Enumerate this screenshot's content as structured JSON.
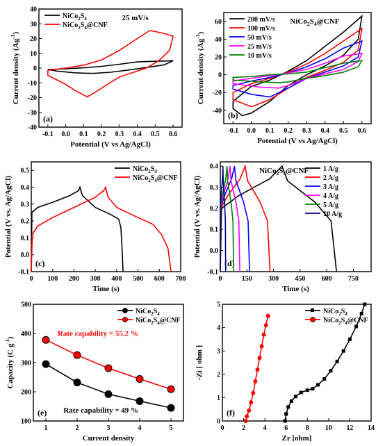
{
  "chart_data": [
    {
      "id": "a",
      "type": "line",
      "panel_label": "(a)",
      "annotation": "25 mV/s",
      "xlabel": "Potential (V vs Ag/AgCl)",
      "ylabel": "Current density (Ag⁻¹)",
      "xlim": [
        -0.15,
        0.65
      ],
      "ylim": [
        -40,
        40
      ],
      "xticks": [
        "-0.1",
        "0.0",
        "0.1",
        "0.2",
        "0.3",
        "0.4",
        "0.5",
        "0.6"
      ],
      "yticks": [
        "-40",
        "-30",
        "-20",
        "-10",
        "0",
        "10",
        "20",
        "30",
        "40"
      ],
      "legend_position": "top-left",
      "series": [
        {
          "name": "NiCo₂S₄",
          "color": "#000000",
          "closed": true,
          "points": [
            [
              -0.1,
              -1
            ],
            [
              0.0,
              -0.5
            ],
            [
              0.1,
              0.2
            ],
            [
              0.2,
              1.2
            ],
            [
              0.3,
              2.6
            ],
            [
              0.4,
              4.2
            ],
            [
              0.5,
              4.6
            ],
            [
              0.6,
              5
            ],
            [
              0.55,
              2.2
            ],
            [
              0.45,
              0.4
            ],
            [
              0.35,
              -1.3
            ],
            [
              0.25,
              -2.8
            ],
            [
              0.15,
              -3.6
            ],
            [
              0.05,
              -3.2
            ],
            [
              -0.05,
              -2
            ],
            [
              -0.1,
              -1
            ]
          ]
        },
        {
          "name": "NiCo₂S₄@CNF",
          "color": "#ff0000",
          "closed": true,
          "points": [
            [
              -0.1,
              -1.5
            ],
            [
              0.0,
              0
            ],
            [
              0.1,
              2
            ],
            [
              0.2,
              5.5
            ],
            [
              0.3,
              12
            ],
            [
              0.4,
              20
            ],
            [
              0.47,
              25.5
            ],
            [
              0.55,
              23.5
            ],
            [
              0.6,
              21.5
            ],
            [
              0.58,
              12
            ],
            [
              0.52,
              5
            ],
            [
              0.45,
              0
            ],
            [
              0.4,
              -2
            ],
            [
              0.3,
              -6
            ],
            [
              0.22,
              -12
            ],
            [
              0.17,
              -16
            ],
            [
              0.12,
              -19.5
            ],
            [
              0.05,
              -15
            ],
            [
              0.0,
              -11
            ],
            [
              -0.05,
              -8
            ],
            [
              -0.1,
              -5
            ],
            [
              -0.1,
              -1.5
            ]
          ]
        }
      ]
    },
    {
      "id": "b",
      "type": "line",
      "panel_label": "(b)",
      "annotation": "NiCo₂S₄@CNF",
      "xlabel": "Potential (V vs Ag/AgCl)",
      "ylabel": "Current density (Ag⁻¹)",
      "xlim": [
        -0.15,
        0.65
      ],
      "ylim": [
        -55,
        70
      ],
      "xticks": [
        "-0.1",
        "0.0",
        "0.1",
        "0.2",
        "0.3",
        "0.4",
        "0.5",
        "0.6"
      ],
      "yticks": [
        "-40",
        "-20",
        "0",
        "20",
        "40",
        "60"
      ],
      "legend_position": "top-left",
      "series": [
        {
          "name": "200 mV/s",
          "color": "#000000",
          "closed": true,
          "points": [
            [
              -0.1,
              -30
            ],
            [
              0.0,
              -13
            ],
            [
              0.1,
              -6
            ],
            [
              0.2,
              4
            ],
            [
              0.3,
              16
            ],
            [
              0.4,
              32
            ],
            [
              0.5,
              48
            ],
            [
              0.6,
              66
            ],
            [
              0.58,
              40
            ],
            [
              0.5,
              22
            ],
            [
              0.4,
              10
            ],
            [
              0.3,
              0
            ],
            [
              0.2,
              -12
            ],
            [
              0.1,
              -30
            ],
            [
              0.0,
              -43
            ],
            [
              -0.05,
              -46
            ],
            [
              -0.1,
              -38
            ],
            [
              -0.1,
              -30
            ]
          ]
        },
        {
          "name": "100 mV/s",
          "color": "#ff0000",
          "closed": true,
          "points": [
            [
              -0.1,
              -20
            ],
            [
              0.0,
              -10
            ],
            [
              0.1,
              -4
            ],
            [
              0.2,
              3
            ],
            [
              0.3,
              12
            ],
            [
              0.4,
              24
            ],
            [
              0.5,
              38
            ],
            [
              0.6,
              52
            ],
            [
              0.58,
              28
            ],
            [
              0.5,
              14
            ],
            [
              0.4,
              5
            ],
            [
              0.3,
              -3
            ],
            [
              0.2,
              -15
            ],
            [
              0.1,
              -28
            ],
            [
              0.0,
              -36
            ],
            [
              -0.1,
              -28
            ],
            [
              -0.1,
              -20
            ]
          ]
        },
        {
          "name": "50 mV/s",
          "color": "#0000ff",
          "closed": true,
          "points": [
            [
              -0.1,
              -12
            ],
            [
              0.0,
              -7
            ],
            [
              0.1,
              -3
            ],
            [
              0.2,
              2
            ],
            [
              0.3,
              9
            ],
            [
              0.4,
              18
            ],
            [
              0.5,
              30
            ],
            [
              0.6,
              38
            ],
            [
              0.58,
              20
            ],
            [
              0.5,
              10
            ],
            [
              0.4,
              3
            ],
            [
              0.3,
              -4
            ],
            [
              0.2,
              -15
            ],
            [
              0.1,
              -25
            ],
            [
              0.0,
              -22
            ],
            [
              -0.1,
              -16
            ],
            [
              -0.1,
              -12
            ]
          ]
        },
        {
          "name": "25 mV/s",
          "color": "#ff00ff",
          "closed": true,
          "points": [
            [
              -0.1,
              -7
            ],
            [
              0.0,
              -4
            ],
            [
              0.1,
              -1
            ],
            [
              0.2,
              2
            ],
            [
              0.3,
              6
            ],
            [
              0.4,
              13
            ],
            [
              0.5,
              21
            ],
            [
              0.6,
              24
            ],
            [
              0.58,
              15
            ],
            [
              0.5,
              6
            ],
            [
              0.4,
              1
            ],
            [
              0.3,
              -4
            ],
            [
              0.2,
              -12
            ],
            [
              0.15,
              -15
            ],
            [
              0.05,
              -14
            ],
            [
              -0.1,
              -10
            ],
            [
              -0.1,
              -7
            ]
          ]
        },
        {
          "name": "10 mV/s",
          "color": "#008000",
          "closed": true,
          "points": [
            [
              -0.1,
              -3
            ],
            [
              0.0,
              -2
            ],
            [
              0.1,
              0
            ],
            [
              0.2,
              1
            ],
            [
              0.3,
              3
            ],
            [
              0.4,
              8
            ],
            [
              0.5,
              13
            ],
            [
              0.6,
              16
            ],
            [
              0.58,
              9
            ],
            [
              0.5,
              3
            ],
            [
              0.4,
              -1
            ],
            [
              0.3,
              -4
            ],
            [
              0.2,
              -8
            ],
            [
              0.15,
              -9
            ],
            [
              0.05,
              -8
            ],
            [
              -0.1,
              -6
            ],
            [
              -0.1,
              -3
            ]
          ]
        }
      ]
    },
    {
      "id": "c",
      "type": "line",
      "panel_label": "(c)",
      "xlabel": "Time (s)",
      "ylabel": "Potential (V vs. Ag/AgCl)",
      "xlim": [
        0,
        700
      ],
      "ylim": [
        -0.1,
        0.55
      ],
      "xticks": [
        "0",
        "100",
        "200",
        "300",
        "400",
        "500",
        "600",
        "700"
      ],
      "yticks": [
        "-0.1",
        "0.0",
        "0.1",
        "0.2",
        "0.3",
        "0.4",
        "0.5"
      ],
      "legend_position": "top-right",
      "series": [
        {
          "name": "NiCo₂S₄",
          "color": "#000000",
          "points": [
            [
              0,
              -0.1
            ],
            [
              3,
              0.25
            ],
            [
              30,
              0.28
            ],
            [
              100,
              0.31
            ],
            [
              180,
              0.35
            ],
            [
              222,
              0.38
            ],
            [
              228,
              0.4
            ],
            [
              240,
              0.35
            ],
            [
              300,
              0.28
            ],
            [
              370,
              0.24
            ],
            [
              410,
              0.21
            ],
            [
              420,
              0.16
            ],
            [
              425,
              0.05
            ],
            [
              430,
              -0.1
            ]
          ]
        },
        {
          "name": "NiCo₂S₄@CNF",
          "color": "#ff0000",
          "points": [
            [
              0,
              -0.1
            ],
            [
              5,
              0.12
            ],
            [
              30,
              0.17
            ],
            [
              100,
              0.22
            ],
            [
              200,
              0.28
            ],
            [
              300,
              0.34
            ],
            [
              340,
              0.38
            ],
            [
              348,
              0.4
            ],
            [
              360,
              0.34
            ],
            [
              400,
              0.28
            ],
            [
              500,
              0.22
            ],
            [
              570,
              0.18
            ],
            [
              610,
              0.12
            ],
            [
              640,
              0.04
            ],
            [
              655,
              -0.1
            ]
          ]
        }
      ]
    },
    {
      "id": "d",
      "type": "line",
      "panel_label": "(d)",
      "annotation": "NiCo₂S₄@CNF",
      "xlabel": "Time (s)",
      "ylabel": "Potential (V vs. Ag/AgCl)",
      "xlim": [
        0,
        850
      ],
      "ylim": [
        -0.1,
        0.42
      ],
      "xticks": [
        "0",
        "150",
        "300",
        "450",
        "600",
        "750"
      ],
      "yticks": [
        "-0.1",
        "0.0",
        "0.1",
        "0.2",
        "0.3",
        "0.4"
      ],
      "legend_position": "top-right",
      "series": [
        {
          "name": "1 A/g",
          "color": "#000000",
          "peak": 348,
          "end": 655
        },
        {
          "name": "2 A/g",
          "color": "#ff0000",
          "peak": 140,
          "end": 280
        },
        {
          "name": "3 A/g",
          "color": "#0000ff",
          "peak": 80,
          "end": 165
        },
        {
          "name": "4 A/g",
          "color": "#ff00ff",
          "peak": 55,
          "end": 110
        },
        {
          "name": "5 A/g",
          "color": "#008000",
          "peak": 38,
          "end": 75
        },
        {
          "name": "10 A/g",
          "color": "#000080",
          "peak": 15,
          "end": 30
        }
      ]
    },
    {
      "id": "e",
      "type": "line",
      "panel_label": "(e)",
      "xlabel": "Current density",
      "ylabel": "Capacity (C g⁻¹)",
      "xlim": [
        0.6,
        5.4
      ],
      "ylim": [
        100,
        500
      ],
      "xticks": [
        "1",
        "2",
        "3",
        "4",
        "5"
      ],
      "yticks": [
        "100",
        "200",
        "300",
        "400",
        "500"
      ],
      "legend_position": "top-right",
      "annotations": [
        "Rate capability = 55.2 %",
        "Rate capability = 49 %"
      ],
      "x": [
        1,
        2,
        3,
        4,
        5
      ],
      "series": [
        {
          "name": "NiCo₂S₄",
          "color": "#000000",
          "values": [
            295,
            232,
            192,
            168,
            145
          ]
        },
        {
          "name": "NiCo₂S₄@CNF",
          "color": "#ff0000",
          "values": [
            378,
            326,
            281,
            244,
            209
          ]
        }
      ]
    },
    {
      "id": "f",
      "type": "scatter",
      "panel_label": "(f)",
      "xlabel": "Zr [ohm]",
      "ylabel": "-Zi [ ohm ]",
      "xlim": [
        0,
        14
      ],
      "ylim": [
        0,
        5
      ],
      "xticks": [
        "0",
        "2",
        "4",
        "6",
        "8",
        "10",
        "12",
        "14"
      ],
      "yticks": [
        "0",
        "1",
        "2",
        "3",
        "4",
        "5"
      ],
      "legend_position": "top-right",
      "series": [
        {
          "name": "NiCo₂S₄",
          "color": "#000000",
          "marker": "square",
          "points": [
            [
              5.9,
              0
            ],
            [
              6.0,
              0.3
            ],
            [
              6.2,
              0.6
            ],
            [
              6.5,
              0.85
            ],
            [
              6.9,
              1.05
            ],
            [
              7.4,
              1.22
            ],
            [
              8.0,
              1.32
            ],
            [
              8.5,
              1.38
            ],
            [
              9.0,
              1.55
            ],
            [
              9.6,
              1.8
            ],
            [
              10.2,
              2.15
            ],
            [
              10.8,
              2.55
            ],
            [
              11.4,
              3.0
            ],
            [
              12.0,
              3.5
            ],
            [
              12.6,
              4.05
            ],
            [
              13.1,
              4.6
            ],
            [
              13.4,
              5.0
            ]
          ]
        },
        {
          "name": "NiCo₂S₄@CNF",
          "color": "#ff0000",
          "marker": "circle",
          "points": [
            [
              2.2,
              0
            ],
            [
              2.3,
              0.2
            ],
            [
              2.5,
              0.45
            ],
            [
              2.7,
              0.8
            ],
            [
              2.9,
              1.2
            ],
            [
              3.1,
              1.7
            ],
            [
              3.3,
              2.2
            ],
            [
              3.5,
              2.7
            ],
            [
              3.7,
              3.2
            ],
            [
              3.9,
              3.7
            ],
            [
              4.1,
              4.1
            ],
            [
              4.3,
              4.5
            ]
          ]
        }
      ]
    }
  ]
}
